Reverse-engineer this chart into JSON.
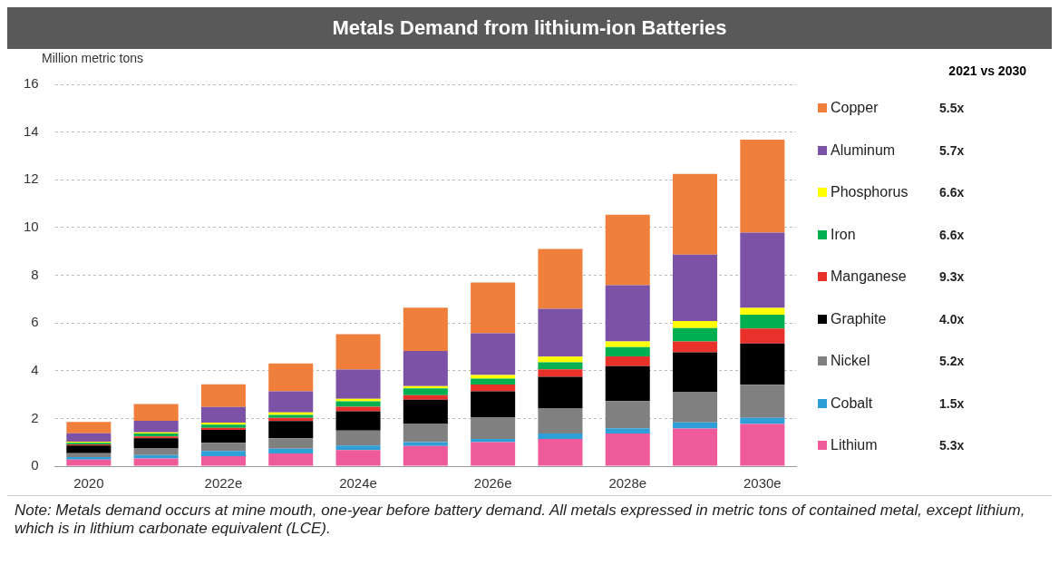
{
  "chart_data": {
    "type": "bar",
    "title": "Metals Demand from lithium-ion Batteries",
    "ylabel": "Million metric tons",
    "categories": [
      "2020",
      null,
      "2022e",
      null,
      "2024e",
      null,
      "2026e",
      null,
      "2028e",
      null,
      "2030e"
    ],
    "stacked": true,
    "ylim": [
      0,
      16
    ],
    "yticks": [
      0,
      2,
      4,
      6,
      8,
      10,
      12,
      14,
      16
    ],
    "grid": "y",
    "legend": "right",
    "legend_title": "2021 vs 2030",
    "series": [
      {
        "name": "Lithium",
        "color": "#ef5a9a",
        "values": [
          0.28,
          0.32,
          0.42,
          0.53,
          0.67,
          0.85,
          1.01,
          1.14,
          1.37,
          1.58,
          1.77
        ]
      },
      {
        "name": "Cobalt",
        "color": "#2f9fd8",
        "values": [
          0.1,
          0.15,
          0.22,
          0.2,
          0.19,
          0.16,
          0.13,
          0.23,
          0.22,
          0.25,
          0.25
        ]
      },
      {
        "name": "Nickel",
        "color": "#808080",
        "values": [
          0.16,
          0.29,
          0.34,
          0.44,
          0.63,
          0.76,
          0.91,
          1.04,
          1.14,
          1.27,
          1.39
        ]
      },
      {
        "name": "Graphite",
        "color": "#000000",
        "values": [
          0.32,
          0.41,
          0.54,
          0.72,
          0.81,
          1.01,
          1.09,
          1.33,
          1.46,
          1.67,
          1.73
        ]
      },
      {
        "name": "Manganese",
        "color": "#e8312a",
        "values": [
          0.05,
          0.07,
          0.09,
          0.13,
          0.19,
          0.19,
          0.28,
          0.32,
          0.41,
          0.46,
          0.63
        ]
      },
      {
        "name": "Iron",
        "color": "#00b050",
        "values": [
          0.07,
          0.13,
          0.13,
          0.13,
          0.23,
          0.29,
          0.25,
          0.29,
          0.39,
          0.56,
          0.58
        ]
      },
      {
        "name": "Phosphorus",
        "color": "#ffff00",
        "values": [
          0.05,
          0.05,
          0.08,
          0.1,
          0.1,
          0.09,
          0.15,
          0.24,
          0.24,
          0.29,
          0.28
        ]
      },
      {
        "name": "Aluminum",
        "color": "#7b52a6",
        "values": [
          0.35,
          0.48,
          0.66,
          0.89,
          1.23,
          1.48,
          1.75,
          2.0,
          2.35,
          2.78,
          3.16
        ]
      },
      {
        "name": "Copper",
        "color": "#f07f3c",
        "values": [
          0.47,
          0.7,
          0.95,
          1.16,
          1.48,
          1.81,
          2.13,
          2.51,
          2.96,
          3.39,
          3.89
        ]
      }
    ],
    "annotations": [
      "5.3x",
      "1.5x",
      "5.2x",
      "4.0x",
      "9.3x",
      "6.6x",
      "6.6x",
      "5.7x",
      "5.5x",
      "Note: Metals demand occurs at mine mouth, one-year before battery demand. All metals expressed in metric tons of contained metal, except lithium, which is in lithium carbonate equivalent (LCE)."
    ]
  }
}
